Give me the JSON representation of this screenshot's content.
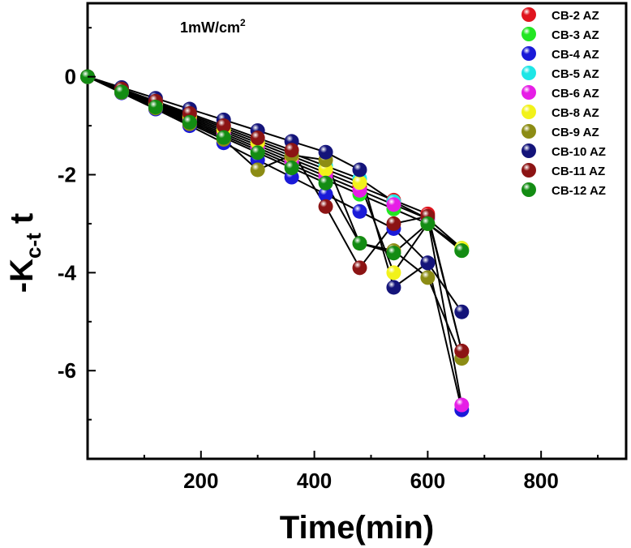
{
  "chart_data": {
    "type": "scatter",
    "annotation": "1mW/cm",
    "annotation_sup": "2",
    "xlabel": "Time(min)",
    "ylabel_main": "-K",
    "ylabel_sub": "c-t",
    "ylabel_tail": " t",
    "xlim": [
      0,
      950
    ],
    "ylim": [
      -7.8,
      1.5
    ],
    "xticks": [
      200,
      400,
      600,
      800
    ],
    "yticks": [
      0,
      -2,
      -4,
      -6
    ],
    "grid": false,
    "legend_position": "top-right",
    "series": [
      {
        "name": "CB-2 AZ",
        "color": "#e0141e",
        "x": [
          0,
          60,
          120,
          180,
          240,
          300,
          360,
          420,
          480,
          540,
          600,
          660
        ],
        "y": [
          0,
          -0.28,
          -0.56,
          -0.84,
          -1.12,
          -1.4,
          -1.68,
          -1.96,
          -2.24,
          -2.52,
          -2.8,
          -5.6
        ]
      },
      {
        "name": "CB-3 AZ",
        "color": "#22e622",
        "x": [
          0,
          60,
          120,
          180,
          240,
          300,
          360,
          420,
          480,
          540,
          600,
          660
        ],
        "y": [
          0,
          -0.3,
          -0.6,
          -0.9,
          -1.2,
          -1.5,
          -1.8,
          -2.1,
          -2.4,
          -2.7,
          -3.0,
          -3.55
        ]
      },
      {
        "name": "CB-4 AZ",
        "color": "#1a1ad8",
        "x": [
          0,
          60,
          120,
          180,
          240,
          300,
          360,
          420,
          480,
          540,
          600,
          660
        ],
        "y": [
          0,
          -0.33,
          -0.66,
          -1.0,
          -1.35,
          -1.7,
          -2.05,
          -2.4,
          -2.75,
          -3.1,
          -3.8,
          -6.8
        ]
      },
      {
        "name": "CB-5 AZ",
        "color": "#1ee6e6",
        "x": [
          0,
          60,
          120,
          180,
          240,
          300,
          360,
          420,
          480,
          540,
          600,
          660
        ],
        "y": [
          0,
          -0.26,
          -0.52,
          -0.78,
          -1.04,
          -1.3,
          -1.56,
          -1.82,
          -2.08,
          -2.55,
          -2.9,
          -3.5
        ]
      },
      {
        "name": "CB-6 AZ",
        "color": "#e61ee6",
        "x": [
          0,
          60,
          120,
          180,
          240,
          300,
          360,
          420,
          480,
          540,
          600,
          660
        ],
        "y": [
          0,
          -0.29,
          -0.58,
          -0.87,
          -1.16,
          -1.45,
          -1.74,
          -2.03,
          -2.32,
          -2.61,
          -2.9,
          -6.7
        ]
      },
      {
        "name": "CB-8 AZ",
        "color": "#f2f21a",
        "x": [
          0,
          60,
          120,
          180,
          240,
          300,
          360,
          420,
          480,
          540,
          600,
          660
        ],
        "y": [
          0,
          -0.27,
          -0.54,
          -0.81,
          -1.08,
          -1.35,
          -1.62,
          -1.89,
          -2.16,
          -4.0,
          -3.0,
          -3.5
        ]
      },
      {
        "name": "CB-9 AZ",
        "color": "#8c8c14",
        "x": [
          0,
          60,
          120,
          180,
          240,
          300,
          360,
          420,
          480,
          540,
          600,
          660
        ],
        "y": [
          0,
          -0.32,
          -0.64,
          -0.96,
          -1.28,
          -1.9,
          -1.6,
          -1.7,
          -3.4,
          -3.55,
          -4.1,
          -5.75
        ]
      },
      {
        "name": "CB-10 AZ",
        "color": "#14147a",
        "x": [
          0,
          60,
          120,
          180,
          240,
          300,
          360,
          420,
          480,
          540,
          600,
          660
        ],
        "y": [
          0,
          -0.22,
          -0.44,
          -0.66,
          -0.88,
          -1.1,
          -1.32,
          -1.54,
          -1.9,
          -4.3,
          -3.8,
          -4.8
        ]
      },
      {
        "name": "CB-11 AZ",
        "color": "#8c1414",
        "x": [
          0,
          60,
          120,
          180,
          240,
          300,
          360,
          420,
          480,
          540,
          600,
          660
        ],
        "y": [
          0,
          -0.25,
          -0.5,
          -0.75,
          -1.0,
          -1.25,
          -1.5,
          -2.65,
          -3.9,
          -3.0,
          -2.85,
          -5.6
        ]
      },
      {
        "name": "CB-12 AZ",
        "color": "#138c13",
        "x": [
          0,
          60,
          120,
          180,
          240,
          300,
          360,
          420,
          480,
          540,
          600,
          660
        ],
        "y": [
          0,
          -0.31,
          -0.62,
          -0.93,
          -1.24,
          -1.55,
          -1.86,
          -2.17,
          -3.4,
          -3.6,
          -3.0,
          -3.55
        ]
      }
    ]
  }
}
